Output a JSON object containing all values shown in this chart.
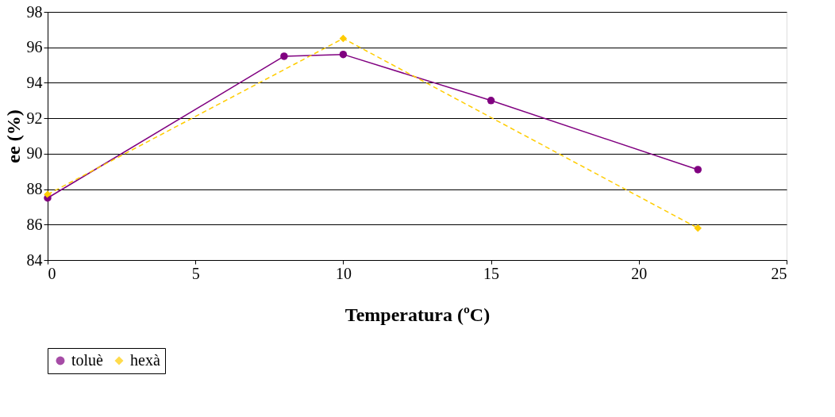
{
  "chart_data": {
    "type": "line",
    "xlabel": "Temperatura (ºC)",
    "ylabel": "ee (%)",
    "xlim": [
      0,
      25
    ],
    "xticks": [
      0,
      5,
      10,
      15,
      20,
      25
    ],
    "ylim": [
      84,
      98
    ],
    "yticks": [
      84,
      86,
      88,
      90,
      92,
      94,
      96,
      98
    ],
    "grid": "y",
    "legend": "bottom",
    "series": [
      {
        "name": "toluè",
        "color": "#800080",
        "marker": "circle",
        "line_style": "solid",
        "x": [
          0,
          8,
          10,
          15,
          22
        ],
        "values": [
          87.5,
          95.5,
          95.6,
          93.0,
          89.1
        ]
      },
      {
        "name": "hexà",
        "color": "#ffcc00",
        "marker": "diamond",
        "line_style": "dashed",
        "x": [
          0,
          10,
          22
        ],
        "values": [
          87.7,
          96.5,
          85.8
        ]
      }
    ]
  }
}
